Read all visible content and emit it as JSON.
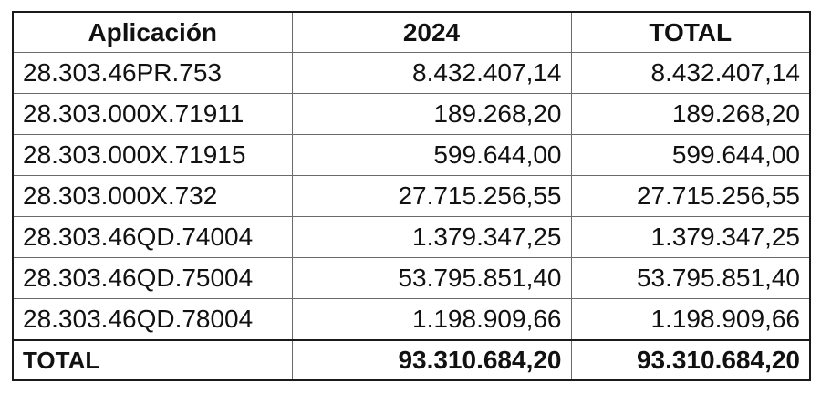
{
  "table": {
    "headers": [
      "Aplicación",
      "2024",
      "TOTAL"
    ],
    "rows": [
      {
        "app": "28.303.46PR.753",
        "y2024": "8.432.407,14",
        "total": "8.432.407,14"
      },
      {
        "app": "28.303.000X.71911",
        "y2024": "189.268,20",
        "total": "189.268,20"
      },
      {
        "app": "28.303.000X.71915",
        "y2024": "599.644,00",
        "total": "599.644,00"
      },
      {
        "app": "28.303.000X.732",
        "y2024": "27.715.256,55",
        "total": "27.715.256,55"
      },
      {
        "app": "28.303.46QD.74004",
        "y2024": "1.379.347,25",
        "total": "1.379.347,25"
      },
      {
        "app": "28.303.46QD.75004",
        "y2024": "53.795.851,40",
        "total": "53.795.851,40"
      },
      {
        "app": "28.303.46QD.78004",
        "y2024": "1.198.909,66",
        "total": "1.198.909,66"
      }
    ],
    "total_row": {
      "app": "TOTAL",
      "y2024": "93.310.684,20",
      "total": "93.310.684,20"
    }
  }
}
